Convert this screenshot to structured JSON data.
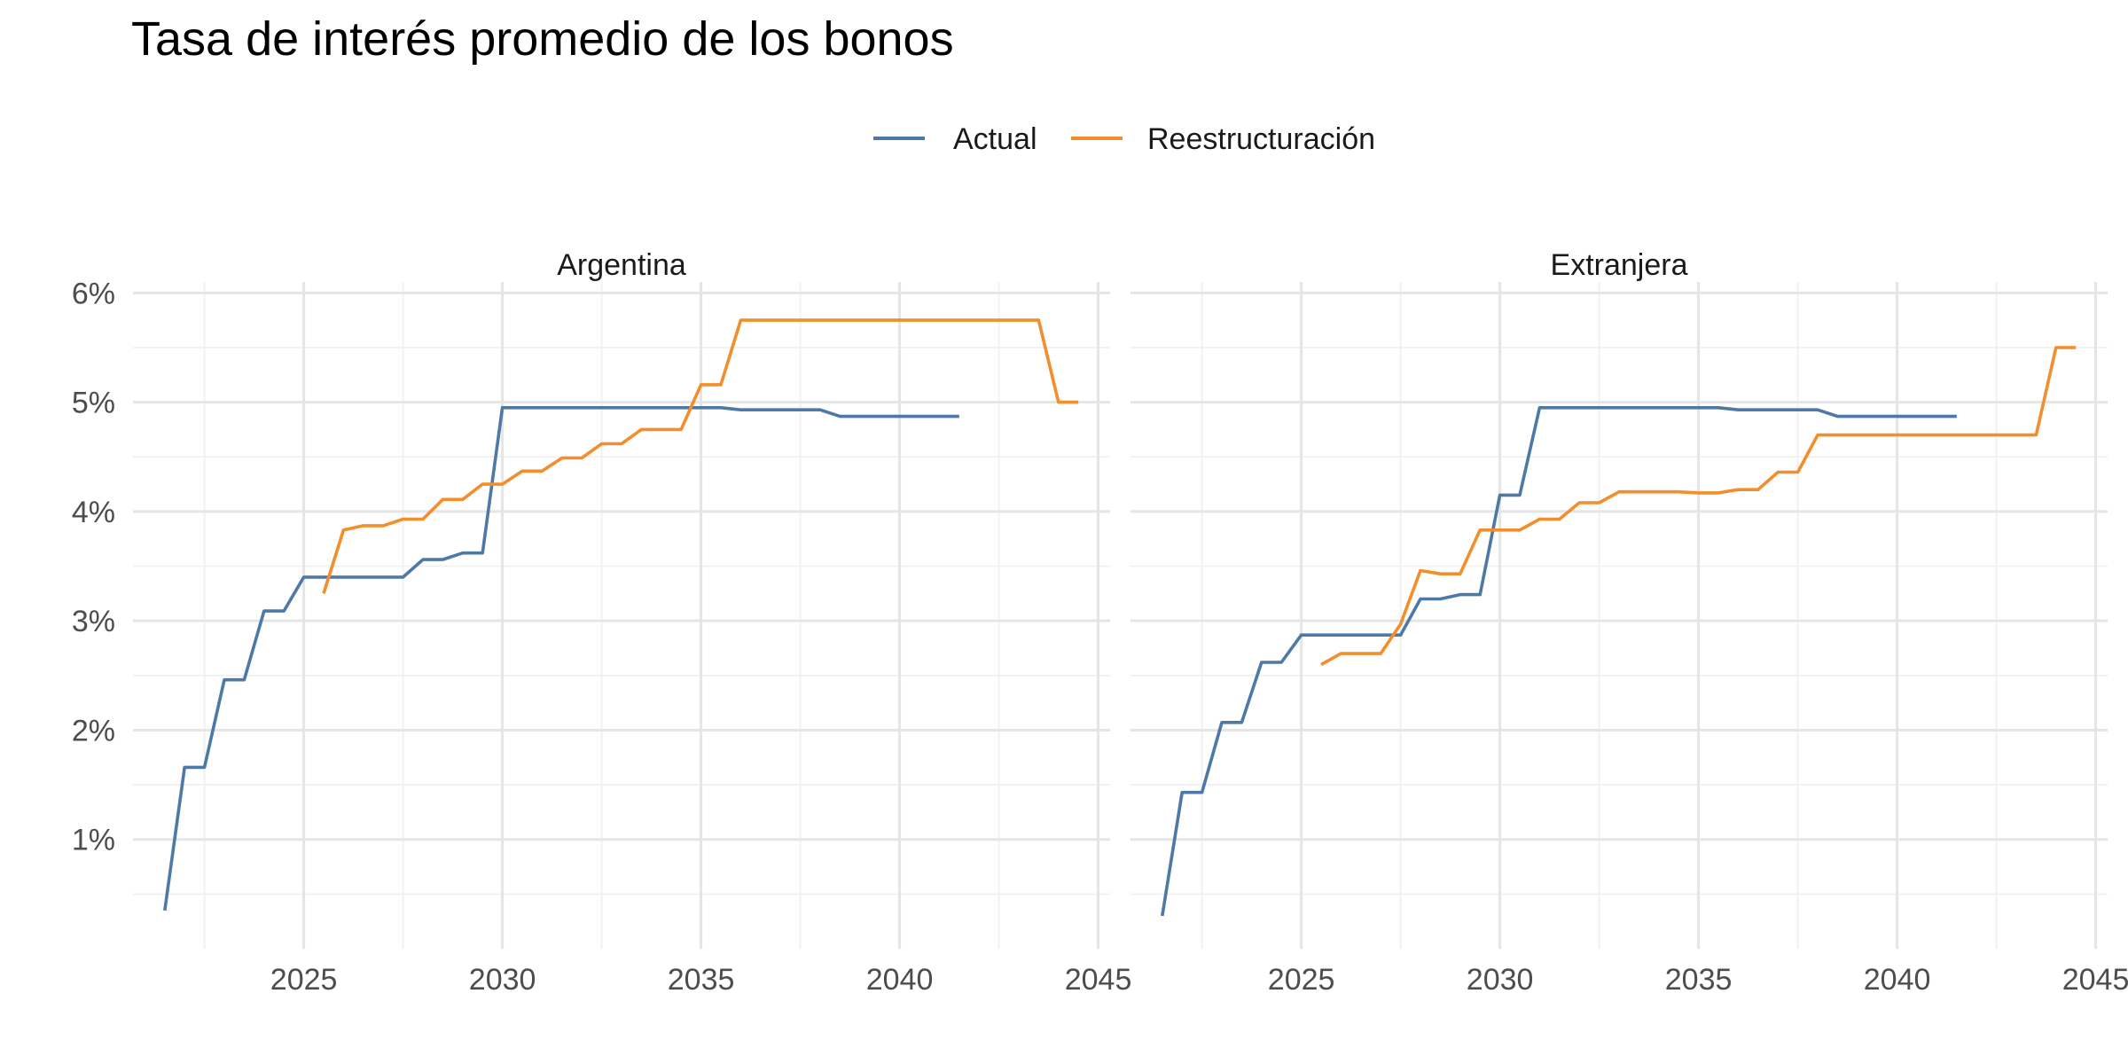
{
  "chart_data": {
    "type": "line",
    "title": "Tasa de interés promedio de los bonos",
    "xlabel": "",
    "ylabel": "",
    "legend_position": "top",
    "grid": true,
    "colors": {
      "Actual": "#4e79a7",
      "Reestructuración": "#f28e2b"
    },
    "legend": [
      {
        "name": "Actual",
        "color": "#4e79a7"
      },
      {
        "name": "Reestructuración",
        "color": "#f28e2b"
      }
    ],
    "xlim": [
      2020.7,
      2045.3
    ],
    "ylim": [
      0.0,
      6.1
    ],
    "xticks": [
      2025,
      2030,
      2035,
      2040,
      2045
    ],
    "yticks": [
      1,
      2,
      3,
      4,
      5,
      6
    ],
    "ytick_labels": [
      "1%",
      "2%",
      "3%",
      "4%",
      "5%",
      "6%"
    ],
    "xtick_labels": [
      "2025",
      "2030",
      "2035",
      "2040",
      "2045"
    ],
    "facets": [
      {
        "name": "Argentina",
        "series": [
          {
            "name": "Actual",
            "x": [
              2021.5,
              2022,
              2022.5,
              2023,
              2023.5,
              2024,
              2024.5,
              2025,
              2025.5,
              2026,
              2026.5,
              2027,
              2027.5,
              2028,
              2028.5,
              2029,
              2029.5,
              2030,
              2030.5,
              2031,
              2031.5,
              2032,
              2032.5,
              2033,
              2033.5,
              2034,
              2034.5,
              2035,
              2035.5,
              2036,
              2036.5,
              2037,
              2037.5,
              2038,
              2038.5,
              2039,
              2039.5,
              2040,
              2040.5,
              2041,
              2041.5
            ],
            "y": [
              0.35,
              1.66,
              1.66,
              2.46,
              2.46,
              3.09,
              3.09,
              3.4,
              3.4,
              3.4,
              3.4,
              3.4,
              3.4,
              3.56,
              3.56,
              3.62,
              3.62,
              4.95,
              4.95,
              4.95,
              4.95,
              4.95,
              4.95,
              4.95,
              4.95,
              4.95,
              4.95,
              4.95,
              4.95,
              4.93,
              4.93,
              4.93,
              4.93,
              4.93,
              4.87,
              4.87,
              4.87,
              4.87,
              4.87,
              4.87,
              4.87
            ]
          },
          {
            "name": "Reestructuración",
            "x": [
              2025.5,
              2026,
              2026.5,
              2027,
              2027.5,
              2028,
              2028.5,
              2029,
              2029.5,
              2030,
              2030.5,
              2031,
              2031.5,
              2032,
              2032.5,
              2033,
              2033.5,
              2034,
              2034.5,
              2035,
              2035.5,
              2036,
              2036.5,
              2037,
              2037.5,
              2038,
              2038.5,
              2039,
              2039.5,
              2040,
              2040.5,
              2041,
              2041.5,
              2042,
              2042.5,
              2043,
              2043.5,
              2044,
              2044.5
            ],
            "y": [
              3.25,
              3.83,
              3.87,
              3.87,
              3.93,
              3.93,
              4.11,
              4.11,
              4.25,
              4.25,
              4.37,
              4.37,
              4.49,
              4.49,
              4.62,
              4.62,
              4.75,
              4.75,
              4.75,
              5.16,
              5.16,
              5.75,
              5.75,
              5.75,
              5.75,
              5.75,
              5.75,
              5.75,
              5.75,
              5.75,
              5.75,
              5.75,
              5.75,
              5.75,
              5.75,
              5.75,
              5.75,
              5.0,
              5.0
            ]
          }
        ]
      },
      {
        "name": "Extranjera",
        "series": [
          {
            "name": "Actual",
            "x": [
              2021.5,
              2022,
              2022.5,
              2023,
              2023.5,
              2024,
              2024.5,
              2025,
              2025.5,
              2026,
              2026.5,
              2027,
              2027.5,
              2028,
              2028.5,
              2029,
              2029.5,
              2030,
              2030.5,
              2031,
              2031.5,
              2032,
              2032.5,
              2033,
              2033.5,
              2034,
              2034.5,
              2035,
              2035.5,
              2036,
              2036.5,
              2037,
              2037.5,
              2038,
              2038.5,
              2039,
              2039.5,
              2040,
              2040.5,
              2041,
              2041.5
            ],
            "y": [
              0.3,
              1.43,
              1.43,
              2.07,
              2.07,
              2.62,
              2.62,
              2.87,
              2.87,
              2.87,
              2.87,
              2.87,
              2.87,
              3.2,
              3.2,
              3.24,
              3.24,
              4.15,
              4.15,
              4.95,
              4.95,
              4.95,
              4.95,
              4.95,
              4.95,
              4.95,
              4.95,
              4.95,
              4.95,
              4.93,
              4.93,
              4.93,
              4.93,
              4.93,
              4.87,
              4.87,
              4.87,
              4.87,
              4.87,
              4.87,
              4.87
            ]
          },
          {
            "name": "Reestructuración",
            "x": [
              2025.5,
              2026,
              2026.5,
              2027,
              2027.5,
              2028,
              2028.5,
              2029,
              2029.5,
              2030,
              2030.5,
              2031,
              2031.5,
              2032,
              2032.5,
              2033,
              2033.5,
              2034,
              2034.5,
              2035,
              2035.5,
              2036,
              2036.5,
              2037,
              2037.5,
              2038,
              2038.5,
              2039,
              2039.5,
              2040,
              2040.5,
              2041,
              2041.5,
              2042,
              2042.5,
              2043,
              2043.5,
              2044,
              2044.5
            ],
            "y": [
              2.6,
              2.7,
              2.7,
              2.7,
              2.97,
              3.46,
              3.43,
              3.43,
              3.83,
              3.83,
              3.83,
              3.93,
              3.93,
              4.08,
              4.08,
              4.18,
              4.18,
              4.18,
              4.18,
              4.17,
              4.17,
              4.2,
              4.2,
              4.36,
              4.36,
              4.7,
              4.7,
              4.7,
              4.7,
              4.7,
              4.7,
              4.7,
              4.7,
              4.7,
              4.7,
              4.7,
              4.7,
              5.5,
              5.5
            ]
          }
        ]
      }
    ]
  }
}
